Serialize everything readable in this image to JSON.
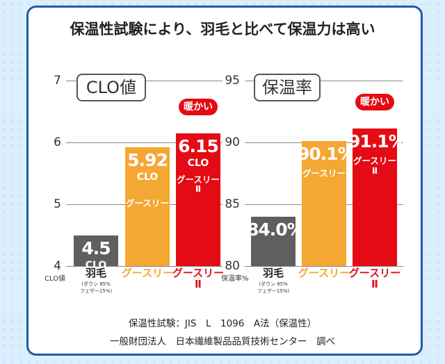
{
  "title": "保温性試験により、羽毛と比べて保温力は高い",
  "footer": [
    "保温性試験：JIS　L　1096　A法（保温性）",
    "一般財団法人　日本繊維製品品質技術センター　調べ"
  ],
  "chart_data": [
    {
      "type": "bar",
      "panel_label": "CLO値",
      "axis_label": "CLO値",
      "categories": [
        "羽毛",
        "グースリー",
        "グースリー\nⅡ"
      ],
      "category_note": "(ダウン 85%\nフェザー15%)",
      "series": [
        {
          "values": [
            4.5,
            5.92,
            6.15
          ],
          "value_labels": [
            "4.5",
            "5.92",
            "6.15"
          ],
          "colors": [
            "#5f5f5f",
            "#f5a733",
            "#e50b14"
          ]
        }
      ],
      "value_unit": "CLO",
      "badge": "暖かい",
      "ylim": [
        4,
        7
      ],
      "yticks": [
        4,
        5,
        6,
        7
      ],
      "grid": true
    },
    {
      "type": "bar",
      "panel_label": "保温率",
      "axis_label": "保温率%",
      "categories": [
        "羽毛",
        "グースリー",
        "グースリー\nⅡ"
      ],
      "category_note": "(ダウン 85%\nフェザー15%)",
      "series": [
        {
          "values": [
            84.0,
            90.1,
            91.1
          ],
          "value_labels": [
            "84.0%",
            "90.1%",
            "91.1%"
          ],
          "colors": [
            "#5f5f5f",
            "#f5a733",
            "#e50b14"
          ]
        }
      ],
      "badge": "暖かい",
      "ylim": [
        80,
        95
      ],
      "yticks": [
        80,
        85,
        90,
        95
      ],
      "grid": true
    }
  ]
}
